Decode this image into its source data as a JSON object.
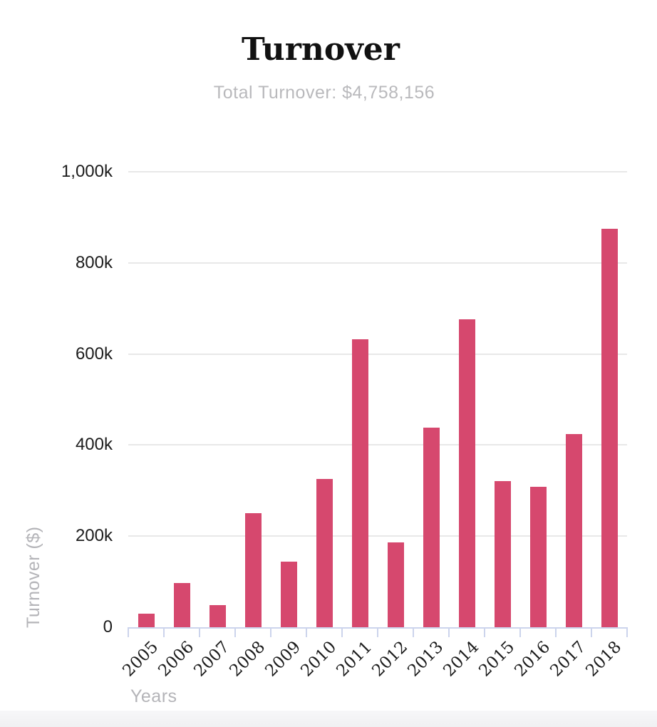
{
  "header": {
    "title": "Turnover",
    "subtitle": "Total Turnover: $4,758,156"
  },
  "chart_data": {
    "type": "bar",
    "title": "Turnover",
    "subtitle": "Total Turnover: $4,758,156",
    "categories": [
      "2005",
      "2006",
      "2007",
      "2008",
      "2009",
      "2010",
      "2011",
      "2012",
      "2013",
      "2014",
      "2015",
      "2016",
      "2017",
      "2018"
    ],
    "values": [
      30000,
      97000,
      49000,
      250000,
      144000,
      326000,
      632000,
      187000,
      438000,
      676000,
      321000,
      309000,
      424000,
      875000
    ],
    "total": "$4,758,156",
    "xlabel": "Years",
    "ylabel": "Turnover ($)",
    "ylim": [
      0,
      1000000
    ],
    "yticks": [
      {
        "label": "0",
        "value": 0
      },
      {
        "label": "200k",
        "value": 200000
      },
      {
        "label": "400k",
        "value": 400000
      },
      {
        "label": "600k",
        "value": 600000
      },
      {
        "label": "800k",
        "value": 800000
      },
      {
        "label": "1,000k",
        "value": 1000000
      }
    ],
    "grid": true,
    "legend": false,
    "colors": {
      "bar": "#d6486e",
      "axis_line": "#ccd4ec",
      "grid_line": "#e8e8e8",
      "tick_label": "#1c1c1c",
      "muted_text": "#b4b4b8",
      "title": "#111111",
      "background": "#ffffff"
    }
  }
}
